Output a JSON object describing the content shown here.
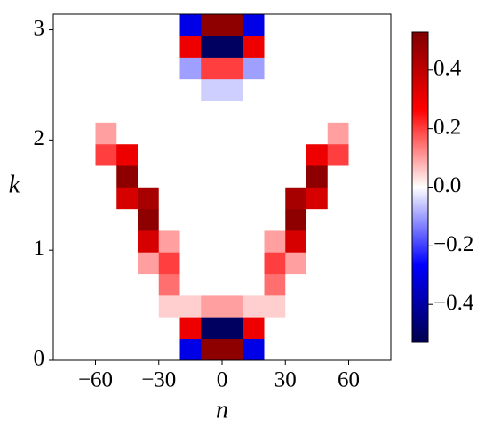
{
  "chart_data": {
    "type": "heatmap",
    "xlabel": "n",
    "ylabel": "k",
    "xlim": [
      -80,
      80
    ],
    "ylim": [
      0,
      3.14159
    ],
    "xticks": [
      {
        "value": -60,
        "label": "−60"
      },
      {
        "value": -30,
        "label": "−30"
      },
      0,
      30,
      60
    ],
    "yticks": [
      0,
      1,
      2,
      3
    ],
    "xbins": [
      -80,
      -70,
      -60,
      -50,
      -40,
      -30,
      -20,
      -10,
      0,
      10,
      20,
      30,
      40,
      50,
      60,
      70,
      80
    ],
    "ybins": [
      0,
      0.196,
      0.393,
      0.589,
      0.785,
      0.982,
      1.178,
      1.374,
      1.571,
      1.767,
      1.963,
      2.16,
      2.356,
      2.553,
      2.749,
      2.945,
      3.14159
    ],
    "z": [
      [
        0,
        0,
        0,
        0,
        0,
        0,
        -0.3,
        0.5,
        0.5,
        -0.3,
        0,
        0,
        0,
        0,
        0,
        0
      ],
      [
        0,
        0,
        0,
        0,
        0,
        0,
        0.3,
        -0.5,
        -0.5,
        0.3,
        0,
        0,
        0,
        0,
        0,
        0
      ],
      [
        0,
        0,
        0,
        0,
        0,
        0.05,
        0.05,
        0.1,
        0.1,
        0.05,
        0.05,
        0,
        0,
        0,
        0,
        0
      ],
      [
        0,
        0,
        0,
        0,
        0,
        0.15,
        0,
        0,
        0,
        0,
        0.15,
        0,
        0,
        0,
        0,
        0
      ],
      [
        0,
        0,
        0,
        0,
        0.1,
        0.2,
        0,
        0,
        0,
        0,
        0.2,
        0.1,
        0,
        0,
        0,
        0
      ],
      [
        0,
        0,
        0,
        0,
        0.35,
        0.1,
        0,
        0,
        0,
        0,
        0.1,
        0.35,
        0,
        0,
        0,
        0
      ],
      [
        0,
        0,
        0,
        0,
        0.5,
        0,
        0,
        0,
        0,
        0,
        0,
        0.5,
        0,
        0,
        0,
        0
      ],
      [
        0,
        0,
        0,
        0.35,
        0.45,
        0,
        0,
        0,
        0,
        0,
        0,
        0.45,
        0.35,
        0,
        0,
        0
      ],
      [
        0,
        0,
        0,
        0.5,
        0,
        0,
        0,
        0,
        0,
        0,
        0,
        0,
        0.5,
        0,
        0,
        0
      ],
      [
        0,
        0,
        0.2,
        0.3,
        0,
        0,
        0,
        0,
        0,
        0,
        0,
        0,
        0.3,
        0.2,
        0,
        0
      ],
      [
        0,
        0,
        0.1,
        0,
        0,
        0,
        0,
        0,
        0,
        0,
        0,
        0,
        0,
        0.1,
        0,
        0
      ],
      [
        0,
        0,
        0,
        0,
        0,
        0,
        0,
        0,
        0,
        0,
        0,
        0,
        0,
        0,
        0,
        0
      ],
      [
        0,
        0,
        0,
        0,
        0,
        0,
        0,
        -0.05,
        -0.05,
        0,
        0,
        0,
        0,
        0,
        0,
        0
      ],
      [
        0,
        0,
        0,
        0,
        0,
        0,
        -0.1,
        0.2,
        0.2,
        -0.1,
        0,
        0,
        0,
        0,
        0,
        0
      ],
      [
        0,
        0,
        0,
        0,
        0,
        0,
        0.3,
        -0.5,
        -0.5,
        0.3,
        0,
        0,
        0,
        0,
        0,
        0
      ],
      [
        0,
        0,
        0,
        0,
        0,
        0,
        -0.3,
        0.5,
        0.5,
        -0.3,
        0,
        0,
        0,
        0,
        0,
        0
      ]
    ],
    "colormap": [
      "#00004c",
      "#0000ff",
      "#ffffff",
      "#ff0000",
      "#800000"
    ],
    "clim": [
      -0.53,
      0.53
    ],
    "cticks": [
      {
        "value": -0.4,
        "label": "−0.4"
      },
      {
        "value": -0.2,
        "label": "−0.2"
      },
      {
        "value": 0,
        "label": "0.0"
      },
      0.2,
      0.4
    ]
  }
}
